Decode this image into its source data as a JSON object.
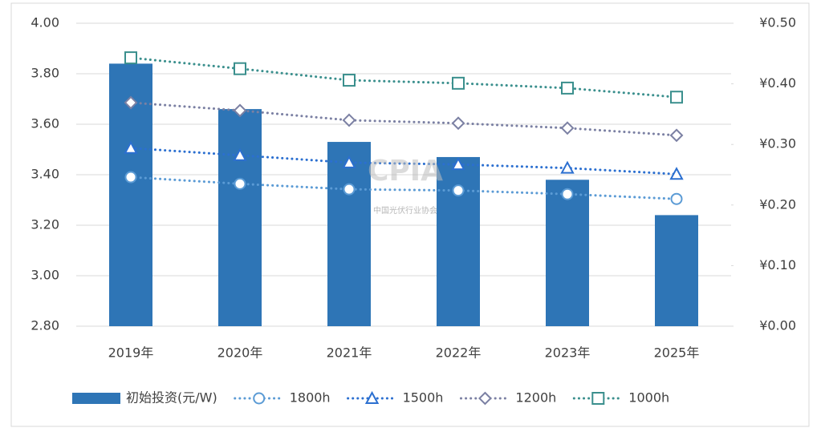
{
  "chart_data": {
    "type": "bar",
    "categories": [
      "2019年",
      "2020年",
      "2021年",
      "2022年",
      "2023年",
      "2025年"
    ],
    "series": [
      {
        "name": "初始投资(元/W)",
        "type": "bar",
        "color": "#2e75b6",
        "values": [
          3.84,
          3.66,
          3.53,
          3.47,
          3.38,
          3.24
        ]
      },
      {
        "name": "1800h",
        "type": "line",
        "axis": "y2",
        "marker": "circle",
        "color": "#5b9bd5",
        "values": [
          0.246,
          0.235,
          0.226,
          0.224,
          0.218,
          0.21
        ]
      },
      {
        "name": "1500h",
        "type": "line",
        "axis": "y2",
        "marker": "triangle",
        "color": "#2b6fd0",
        "values": [
          0.294,
          0.282,
          0.27,
          0.267,
          0.261,
          0.251
        ]
      },
      {
        "name": "1200h",
        "type": "line",
        "axis": "y2",
        "marker": "diamond",
        "color": "#7b80a3",
        "values": [
          0.369,
          0.356,
          0.34,
          0.335,
          0.327,
          0.315
        ]
      },
      {
        "name": "1000h",
        "type": "line",
        "axis": "y2",
        "marker": "square",
        "color": "#3a8f8d",
        "values": [
          0.443,
          0.425,
          0.406,
          0.401,
          0.393,
          0.378
        ]
      }
    ],
    "ylim": [
      2.8,
      4.0
    ],
    "yticks": [
      {
        "value": 2.8,
        "label": "2.80"
      },
      {
        "value": 3.0,
        "label": "3.00"
      },
      {
        "value": 3.2,
        "label": "3.20"
      },
      {
        "value": 3.4,
        "label": "3.40"
      },
      {
        "value": 3.6,
        "label": "3.60"
      },
      {
        "value": 3.8,
        "label": "3.80"
      },
      {
        "value": 4.0,
        "label": "4.00"
      }
    ],
    "y2lim": [
      0,
      0.5
    ],
    "y2ticks": [
      {
        "value": 0,
        "label": "¥0.00"
      },
      {
        "value": 0.1,
        "label": "¥0.10"
      },
      {
        "value": 0.2,
        "label": "¥0.20"
      },
      {
        "value": 0.3,
        "label": "¥0.30"
      },
      {
        "value": 0.4,
        "label": "¥0.40"
      },
      {
        "value": 0.5,
        "label": "¥0.50"
      }
    ],
    "grid": true,
    "legend": "bottom",
    "watermark": [
      "CPIA",
      "中国光伏行业协会"
    ]
  }
}
